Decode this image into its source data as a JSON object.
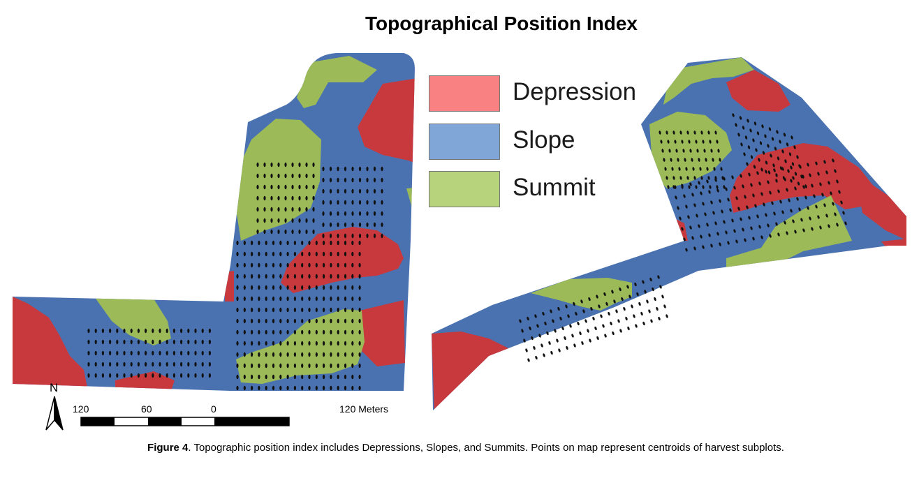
{
  "title": "Topographical Position Index",
  "legend": {
    "items": [
      {
        "label": "Depression",
        "color": "#f98181"
      },
      {
        "label": "Slope",
        "color": "#80a5d7"
      },
      {
        "label": "Summit",
        "color": "#b7d47d"
      }
    ]
  },
  "map_colors": {
    "depression": "#c8393d",
    "slope": "#4a72b0",
    "summit": "#9cbb58",
    "point": "#111111"
  },
  "north_arrow": {
    "label": "N"
  },
  "scale_bar": {
    "ticks": [
      "120",
      "60",
      "0",
      "120 Meters"
    ]
  },
  "caption": {
    "figure_label": "Figure 4",
    "text": ". Topographic position index includes Depressions, Slopes, and Summits. Points on map represent centroids of harvest subplots."
  }
}
